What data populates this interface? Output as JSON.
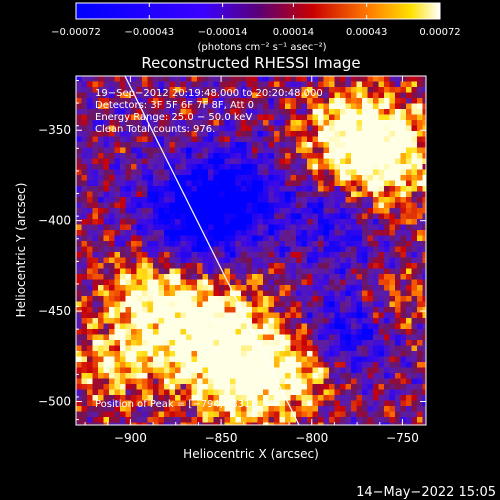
{
  "chart_data": {
    "type": "heatmap",
    "title": "Reconstructed RHESSI Image",
    "xlabel": "Heliocentric X (arcsec)",
    "ylabel": "Heliocentric Y (arcsec)",
    "xlim": [
      -930,
      -737
    ],
    "ylim": [
      -513,
      -320
    ],
    "x_ticks": [
      -900,
      -850,
      -800,
      -750
    ],
    "y_ticks": [
      -350,
      -400,
      -450,
      -500
    ],
    "x_tick_labels": [
      "−900",
      "−850",
      "−800",
      "−750"
    ],
    "y_tick_labels": [
      "−350",
      "−400",
      "−450",
      "−500"
    ],
    "colorbar": {
      "range": [
        -0.00072,
        0.00072
      ],
      "tick_values": [
        -0.00072,
        -0.00043,
        -0.00014,
        0.00014,
        0.00043,
        0.00072
      ],
      "tick_labels": [
        "−0.00072",
        "−0.00043",
        "−0.00014",
        "0.00014",
        "0.00043",
        "0.00072"
      ],
      "unit_label": "(photons cm⁻² s⁻¹ asec⁻²)"
    },
    "annotations": [
      "19−Sep−2012 20:19:48.000 to 20:20:48.000",
      "Detectors: 3F 5F 6F 7F 8F, Att 0",
      "Energy Range: 25.0 − 50.0 keV",
      "Clean    Total counts: 976."
    ],
    "peak_label": "Position of Peak = [−794,−331]",
    "peak_position": [
      -794,
      -331
    ],
    "limb_line": {
      "from": [
        -903,
        -320
      ],
      "to": [
        -807,
        -513
      ]
    },
    "grid": false
  },
  "footer_timestamp": "14−May−2022 15:05"
}
